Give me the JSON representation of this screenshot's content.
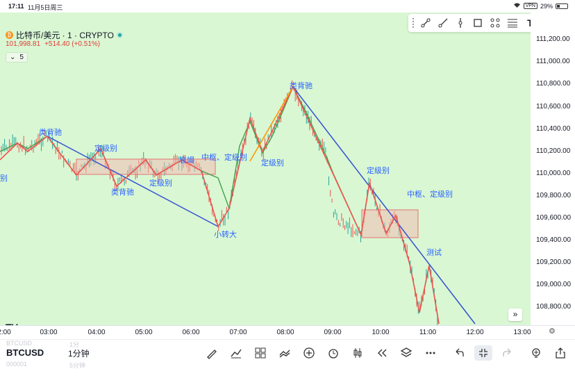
{
  "status": {
    "time": "17:11",
    "date": "11月5日周三",
    "vpn": "VPN",
    "battery": "29%"
  },
  "header": {
    "title": "比特币/美元 · 1 · CRYPTO",
    "price": "101,998.81",
    "change": "+514.40 (+0.51%)",
    "indicator_count": "5"
  },
  "price_axis": [
    "111,200.00",
    "111,000.00",
    "110,800.00",
    "110,600.00",
    "110,400.00",
    "110,200.00",
    "110,000.00",
    "109,800.00",
    "109,600.00",
    "109,400.00",
    "109,200.00",
    "109,000.00",
    "108,800.00"
  ],
  "time_axis": [
    "2:00",
    "03:00",
    "04:00",
    "05:00",
    "06:00",
    "07:00",
    "08:00",
    "09:00",
    "10:00",
    "11:00",
    "12:00",
    "13:00"
  ],
  "annotations": {
    "a1": "类背驰",
    "a2": "定级别",
    "a3": "类背驰",
    "a4": "定级别",
    "a5": "衰竭",
    "a6": "中枢、定级别",
    "a7": "定级别",
    "a8": "小转大",
    "a9": "类背驰",
    "a10": "定级别",
    "a11": "中枢、定级别",
    "a12": "测试",
    "a13": "别"
  },
  "bottom": {
    "symbol": "BTCUSD",
    "interval": "1分钟",
    "ghost_symbol": "BTCUSD",
    "ghost_code": "000001",
    "ghost_interval_top": "1分",
    "ghost_interval_bottom": "5分钟"
  },
  "icons": {
    "drawing_tools": [
      "trend-line-icon",
      "ray-icon",
      "vertical-line-icon",
      "rectangle-icon",
      "node-icon",
      "fib-icon",
      "text-icon",
      "more-icon"
    ],
    "bottom_tools": [
      "brush-icon",
      "indicator-icon",
      "layout-icon",
      "compare-icon",
      "add-icon",
      "alert-icon",
      "bar-replay-icon",
      "rewind-icon",
      "layers-icon",
      "more-icon",
      "undo-icon",
      "fullscreen-icon",
      "redo-icon",
      "idea-icon",
      "share-icon"
    ]
  },
  "colors": {
    "background": "#d9f7d3",
    "up": "#26a69a",
    "down": "#ef5350",
    "trend": "#3451d1",
    "zone": "#f2b8b0",
    "stroke_orange": "#ff9800"
  }
}
